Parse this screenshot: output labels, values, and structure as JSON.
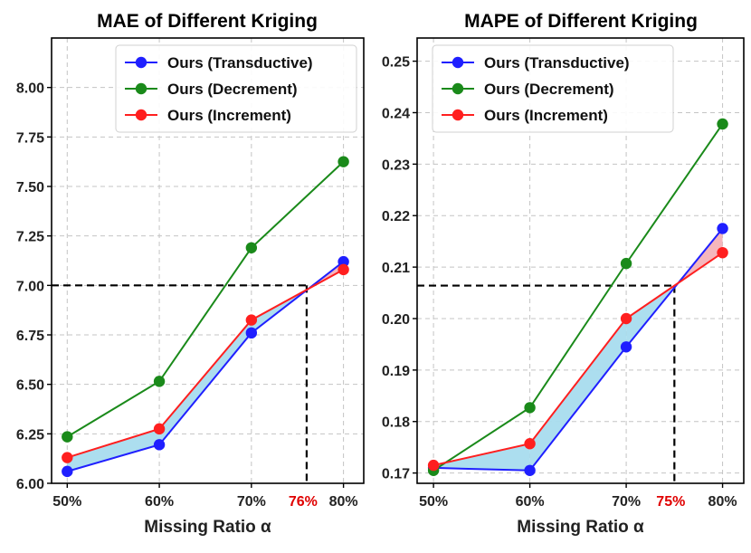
{
  "chart_data": [
    {
      "type": "line",
      "title": "MAE of Different Kriging",
      "xlabel": "Missing Ratio α",
      "ylabel": "",
      "x": [
        50,
        60,
        70,
        80
      ],
      "x_tick_labels": [
        "50%",
        "60%",
        "70%",
        "80%"
      ],
      "ylim": [
        6.0,
        8.25
      ],
      "y_ticks": [
        6.0,
        6.25,
        6.5,
        6.75,
        7.0,
        7.25,
        7.5,
        7.75,
        8.0
      ],
      "y_tick_labels": [
        "6.00",
        "6.25",
        "6.50",
        "6.75",
        "7.00",
        "7.25",
        "7.50",
        "7.75",
        "8.00"
      ],
      "series": [
        {
          "name": "Ours (Transductive)",
          "color": "#1f1fff",
          "values": [
            6.06,
            6.195,
            6.76,
            7.12
          ]
        },
        {
          "name": "Ours (Decrement)",
          "color": "#1a8a1a",
          "values": [
            6.235,
            6.515,
            7.19,
            7.625
          ]
        },
        {
          "name": "Ours (Increment)",
          "color": "#ff1f1f",
          "values": [
            6.13,
            6.275,
            6.825,
            7.08
          ]
        }
      ],
      "fill_colors": {
        "below": "#a8dcee",
        "above": "#f4b2b8"
      },
      "annotation": {
        "x": 76,
        "y": 7.0,
        "label": "76%",
        "color": "#e00000"
      },
      "legend": "top-right",
      "grid": true
    },
    {
      "type": "line",
      "title": "MAPE of Different Kriging",
      "xlabel": "Missing Ratio α",
      "ylabel": "",
      "x": [
        50,
        60,
        70,
        80
      ],
      "x_tick_labels": [
        "50%",
        "60%",
        "70%",
        "80%"
      ],
      "ylim": [
        0.168,
        0.2545
      ],
      "y_ticks": [
        0.17,
        0.18,
        0.19,
        0.2,
        0.21,
        0.22,
        0.23,
        0.24,
        0.25
      ],
      "y_tick_labels": [
        "0.17",
        "0.18",
        "0.19",
        "0.20",
        "0.21",
        "0.22",
        "0.23",
        "0.24",
        "0.25"
      ],
      "series": [
        {
          "name": "Ours (Transductive)",
          "color": "#1f1fff",
          "values": [
            0.171,
            0.1705,
            0.1945,
            0.2175
          ]
        },
        {
          "name": "Ours (Decrement)",
          "color": "#1a8a1a",
          "values": [
            0.1705,
            0.1827,
            0.2107,
            0.2378
          ]
        },
        {
          "name": "Ours (Increment)",
          "color": "#ff1f1f",
          "values": [
            0.1715,
            0.1757,
            0.2,
            0.2128
          ]
        }
      ],
      "fill_colors": {
        "below": "#a8dcee",
        "above": "#f4b2b8"
      },
      "annotation": {
        "x": 75,
        "y": 0.2064,
        "label": "75%",
        "color": "#e00000"
      },
      "legend": "top-left",
      "grid": true
    }
  ]
}
